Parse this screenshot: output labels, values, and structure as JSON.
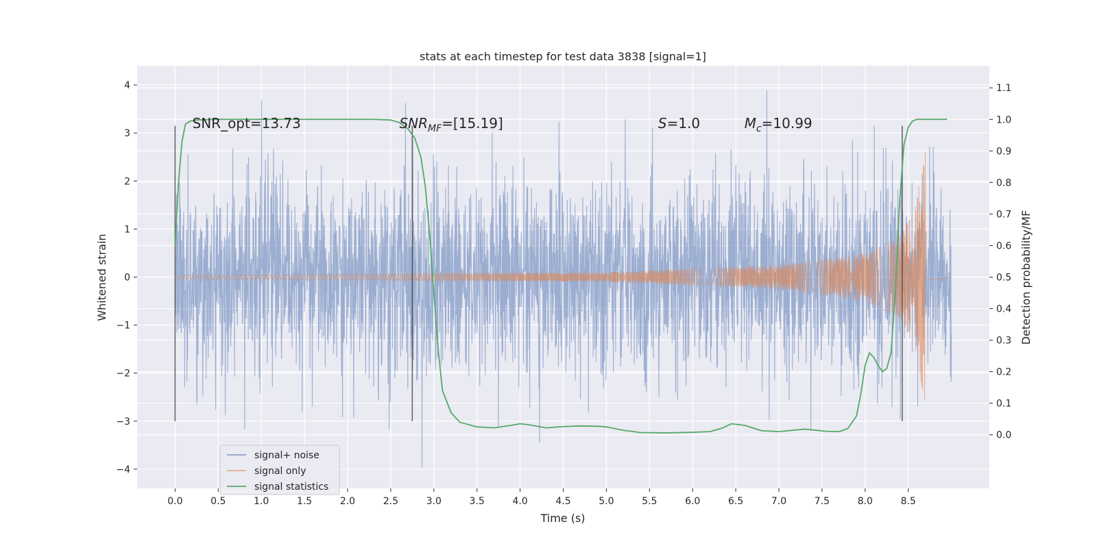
{
  "chart_data": {
    "type": "line",
    "title": "stats at each timestep for test data 3838 [signal=1]",
    "xlabel": "Time (s)",
    "ylabel": "Whitened strain",
    "y2label": "Detection probability/MF",
    "xlim": [
      -0.44,
      9.44
    ],
    "ylim": [
      -4.4,
      4.4
    ],
    "y2lim": [
      -0.17,
      1.17
    ],
    "xticks": [
      "0.0",
      "0.5",
      "1.0",
      "1.5",
      "2.0",
      "2.5",
      "3.0",
      "3.5",
      "4.0",
      "4.5",
      "5.0",
      "5.5",
      "6.0",
      "6.5",
      "7.0",
      "7.5",
      "8.0",
      "8.5"
    ],
    "yticks": [
      "4",
      "3",
      "2",
      "1",
      "0",
      "−1",
      "−2",
      "−3",
      "−4"
    ],
    "y2ticks": [
      "1.1",
      "1.0",
      "0.9",
      "0.8",
      "0.7",
      "0.6",
      "0.5",
      "0.4",
      "0.3",
      "0.2",
      "0.1",
      "0.0"
    ],
    "legend_position": "lower-left",
    "annotations": [
      {
        "name": "snr-opt",
        "label": "SNR_opt=13.73",
        "x": 0.2,
        "y": 3.1
      },
      {
        "name": "snr-mf",
        "label": "SNR_MF=[15.19]",
        "x": 2.6,
        "y": 3.1
      },
      {
        "name": "s-value",
        "label": "S=1.0",
        "x": 5.6,
        "y": 3.1
      },
      {
        "name": "chirp-mass",
        "label": "M_c=10.99",
        "x": 6.6,
        "y": 3.1
      }
    ],
    "vertical_markers": [
      {
        "x": 0.0,
        "y_from": -3.0,
        "y_to": 3.15
      },
      {
        "x": 2.75,
        "y_from": -3.0,
        "y_to": 3.15
      },
      {
        "x": 8.43,
        "y_from": -3.0,
        "y_to": 3.15
      }
    ],
    "series": [
      {
        "name": "signal+ noise",
        "color": "#4c72b0",
        "t_range": [
          0.0,
          9.0
        ],
        "amplitude_1sigma": 1.0,
        "max_abs": 4.0
      },
      {
        "name": "signal only",
        "color": "#dd8452",
        "t_range": [
          0.0,
          8.7
        ],
        "envelope": {
          "t": [
            0.0,
            5.0,
            7.0,
            8.0,
            8.4,
            8.6,
            8.68
          ],
          "amp": [
            0.04,
            0.1,
            0.25,
            0.5,
            0.85,
            1.6,
            2.6
          ]
        }
      },
      {
        "name": "signal statistics",
        "color": "#55a868",
        "axis": "right",
        "x": [
          0.0,
          0.04,
          0.08,
          0.12,
          0.18,
          0.25,
          0.35,
          0.5,
          1.0,
          1.5,
          2.0,
          2.3,
          2.5,
          2.6,
          2.7,
          2.78,
          2.85,
          2.9,
          2.95,
          3.0,
          3.05,
          3.1,
          3.2,
          3.3,
          3.5,
          3.7,
          3.9,
          4.0,
          4.1,
          4.3,
          4.5,
          4.7,
          4.9,
          5.0,
          5.2,
          5.4,
          5.7,
          6.0,
          6.2,
          6.35,
          6.45,
          6.6,
          6.8,
          7.0,
          7.15,
          7.3,
          7.55,
          7.7,
          7.8,
          7.9,
          7.95,
          8.0,
          8.05,
          8.1,
          8.15,
          8.2,
          8.25,
          8.3,
          8.35,
          8.4,
          8.45,
          8.5,
          8.55,
          8.6,
          8.7,
          8.9,
          8.95
        ],
        "y": [
          0.6,
          0.8,
          0.93,
          0.985,
          0.995,
          0.998,
          0.999,
          1.0,
          1.0,
          1.0,
          1.0,
          1.0,
          0.998,
          0.99,
          0.97,
          0.94,
          0.88,
          0.79,
          0.64,
          0.45,
          0.27,
          0.14,
          0.07,
          0.04,
          0.025,
          0.022,
          0.03,
          0.035,
          0.032,
          0.022,
          0.026,
          0.028,
          0.027,
          0.025,
          0.014,
          0.007,
          0.006,
          0.008,
          0.01,
          0.022,
          0.035,
          0.03,
          0.013,
          0.01,
          0.014,
          0.018,
          0.011,
          0.01,
          0.02,
          0.06,
          0.13,
          0.22,
          0.26,
          0.245,
          0.22,
          0.2,
          0.21,
          0.26,
          0.45,
          0.74,
          0.92,
          0.975,
          0.995,
          1.0,
          1.0,
          1.0,
          1.0
        ]
      }
    ]
  }
}
